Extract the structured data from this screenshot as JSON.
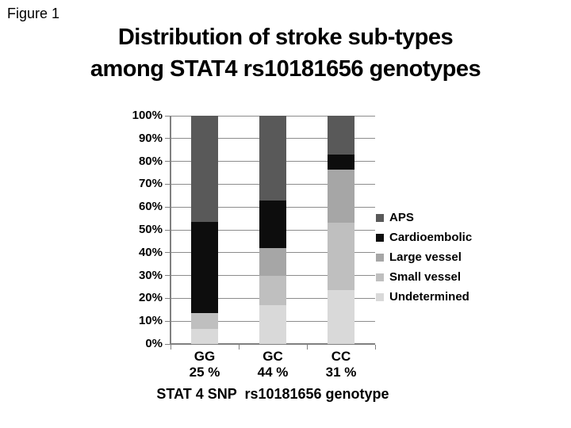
{
  "figure_label": "Figure 1",
  "title": {
    "line1": "Distribution of stroke sub-types",
    "line2": "among STAT4 rs10181656 genotypes"
  },
  "chart_data": {
    "type": "bar",
    "subtype": "stacked-percent",
    "title": "Distribution of stroke sub-types among STAT4 rs10181656 genotypes",
    "xlabel": "STAT 4 SNP  rs10181656 genotype",
    "ylabel": "",
    "ylim": [
      0,
      100
    ],
    "grid": true,
    "legend_position": "right",
    "y_tick_labels": [
      "100%",
      "90%",
      "80%",
      "70%",
      "60%",
      "50%",
      "40%",
      "30%",
      "20%",
      "10%",
      "0%"
    ],
    "categories": [
      {
        "genotype": "GG",
        "frequency": "25 %"
      },
      {
        "genotype": "GC",
        "frequency": "44 %"
      },
      {
        "genotype": "CC",
        "frequency": "31 %"
      }
    ],
    "stack_order_bottom_to_top": [
      "Undetermined",
      "Small vessel",
      "Large vessel",
      "Cardioembolic",
      "APS"
    ],
    "series": [
      {
        "name": "Undetermined",
        "color": "#d9d9d9",
        "values": [
          6.5,
          17.0,
          23.5
        ]
      },
      {
        "name": "Small vessel",
        "color": "#bfbfbf",
        "values": [
          7.0,
          13.0,
          29.5
        ]
      },
      {
        "name": "Large vessel",
        "color": "#a6a6a6",
        "values": [
          0.0,
          12.0,
          23.5
        ]
      },
      {
        "name": "Cardioembolic",
        "color": "#0d0d0d",
        "values": [
          40.0,
          21.0,
          6.5
        ]
      },
      {
        "name": "APS",
        "color": "#595959",
        "values": [
          46.5,
          37.0,
          17.0
        ]
      }
    ],
    "legend_order": [
      "APS",
      "Cardioembolic",
      "Large vessel",
      "Small vessel",
      "Undetermined"
    ]
  },
  "colors": {
    "gridline": "#8c8c8c",
    "axis": "#808080",
    "text": "#000000",
    "background": "#ffffff"
  }
}
